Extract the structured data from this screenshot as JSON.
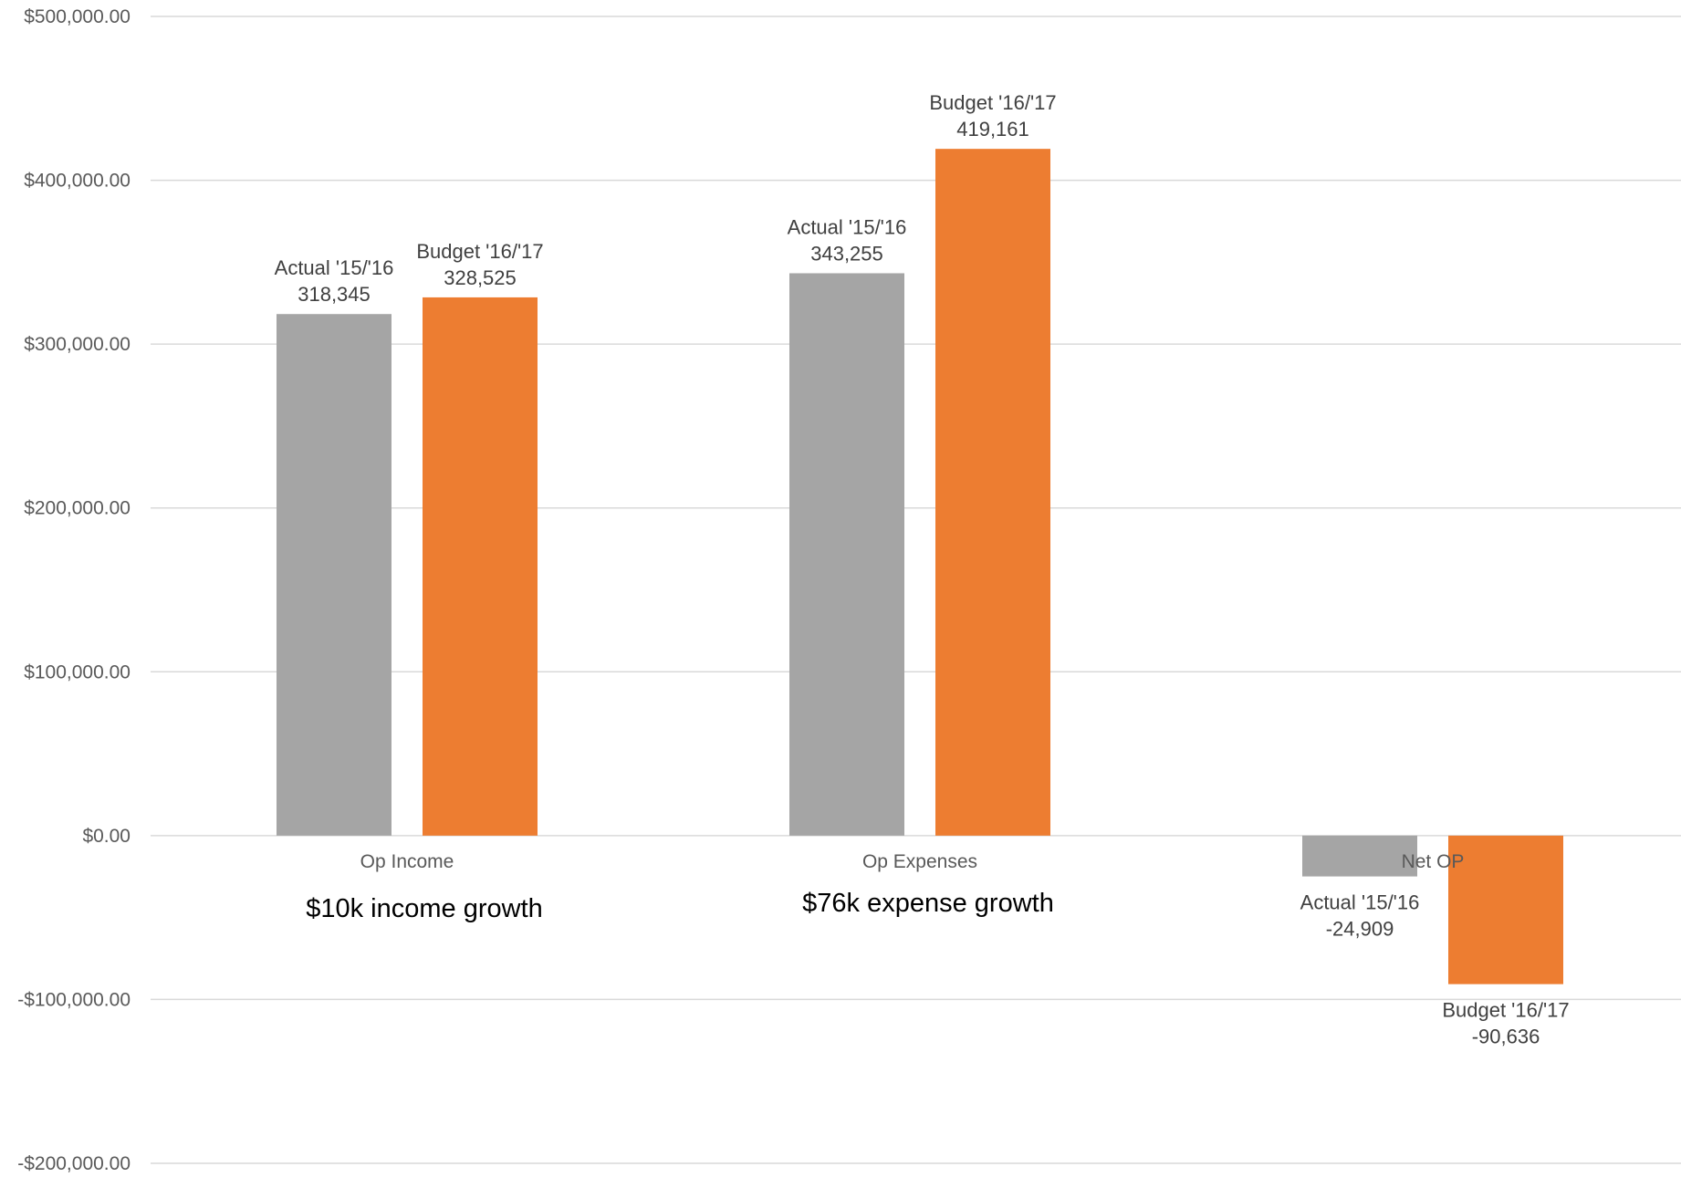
{
  "chart_data": {
    "type": "bar",
    "categories": [
      "Op Income",
      "Op Expenses",
      "Net OP"
    ],
    "series": [
      {
        "name": "Actual '15/'16",
        "color": "#a5a5a5",
        "values": [
          318345,
          343255,
          -24909
        ],
        "value_labels": [
          "318,345",
          "343,255",
          "-24,909"
        ]
      },
      {
        "name": "Budget '16/'17",
        "color": "#ed7d31",
        "values": [
          328525,
          419161,
          -90636
        ],
        "value_labels": [
          "328,525",
          "419,161",
          "-90,636"
        ]
      }
    ],
    "ylim": [
      -200000,
      500000
    ],
    "yticks": [
      500000,
      400000,
      300000,
      200000,
      100000,
      0,
      -100000,
      -200000
    ],
    "ytick_labels": [
      "$500,000.00",
      "$400,000.00",
      "$300,000.00",
      "$200,000.00",
      "$100,000.00",
      "$0.00",
      "-$100,000.00",
      "-$200,000.00"
    ],
    "grid": true,
    "legend": "none",
    "annotations": [
      {
        "text": "$10k income growth",
        "category": "Op Income"
      },
      {
        "text": "$76k expense growth",
        "category": "Op Expenses"
      }
    ]
  }
}
